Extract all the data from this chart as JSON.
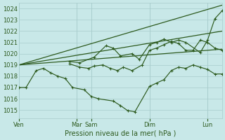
{
  "xlabel": "Pression niveau de la mer( hPa )",
  "ylim": [
    1014.3,
    1024.5
  ],
  "yticks": [
    1015,
    1016,
    1017,
    1018,
    1019,
    1020,
    1021,
    1022,
    1023,
    1024
  ],
  "xtick_labels": [
    "Ven",
    "Mar",
    "Sam",
    "Dim",
    "Lun"
  ],
  "xtick_positions": [
    0,
    4,
    5,
    9,
    13
  ],
  "x_max": 14,
  "background_color": "#c8e8e8",
  "grid_color": "#a8cccc",
  "line_color": "#2d5a1e",
  "straight_line1": {
    "x": [
      0,
      14
    ],
    "y": [
      1019.0,
      1024.3
    ]
  },
  "straight_line2": {
    "x": [
      0,
      14
    ],
    "y": [
      1019.0,
      1022.0
    ]
  },
  "straight_line3": {
    "x": [
      0,
      14
    ],
    "y": [
      1019.0,
      1020.4
    ]
  },
  "main_line": {
    "x": [
      0,
      0.5,
      1.2,
      1.7,
      2.2,
      2.7,
      3.2,
      3.7,
      4.5,
      5.0,
      5.5,
      6.5,
      7.0,
      7.5,
      8.0,
      9.0,
      9.5,
      10.0,
      10.5,
      11.0,
      11.5,
      12.0,
      12.5,
      13.0,
      13.5,
      14.0
    ],
    "y": [
      1017.0,
      1017.0,
      1018.5,
      1018.7,
      1018.3,
      1018.0,
      1017.8,
      1017.0,
      1016.8,
      1016.2,
      1016.0,
      1015.8,
      1015.4,
      1014.95,
      1014.85,
      1017.1,
      1017.4,
      1017.7,
      1018.5,
      1018.8,
      1018.7,
      1019.0,
      1018.8,
      1018.6,
      1018.2,
      1018.2
    ]
  },
  "line2": {
    "x": [
      3.5,
      4.2,
      4.8,
      5.2,
      5.8,
      6.3,
      6.8,
      7.2,
      7.8,
      8.5,
      9.0,
      9.5,
      10.0,
      10.5,
      11.0,
      11.5,
      12.0,
      12.5,
      13.0,
      13.5,
      14.0
    ],
    "y": [
      1019.1,
      1018.8,
      1018.7,
      1018.9,
      1019.0,
      1018.7,
      1018.5,
      1018.8,
      1018.5,
      1019.0,
      1020.3,
      1020.5,
      1020.8,
      1021.1,
      1020.9,
      1020.3,
      1020.3,
      1021.2,
      1021.0,
      1020.5,
      1020.3
    ]
  },
  "line3": {
    "x": [
      3.5,
      4.2,
      5.2,
      6.0,
      6.5,
      7.0,
      7.8,
      8.3,
      9.0,
      9.5,
      10.0,
      10.5,
      11.0,
      11.5,
      12.5,
      13.0,
      13.5,
      14.0
    ],
    "y": [
      1019.3,
      1019.2,
      1019.7,
      1020.7,
      1020.5,
      1019.8,
      1020.0,
      1019.5,
      1020.8,
      1021.0,
      1021.3,
      1021.0,
      1021.2,
      1021.0,
      1020.1,
      1021.2,
      1023.1,
      1023.8
    ]
  },
  "figsize": [
    3.2,
    2.0
  ],
  "dpi": 100
}
